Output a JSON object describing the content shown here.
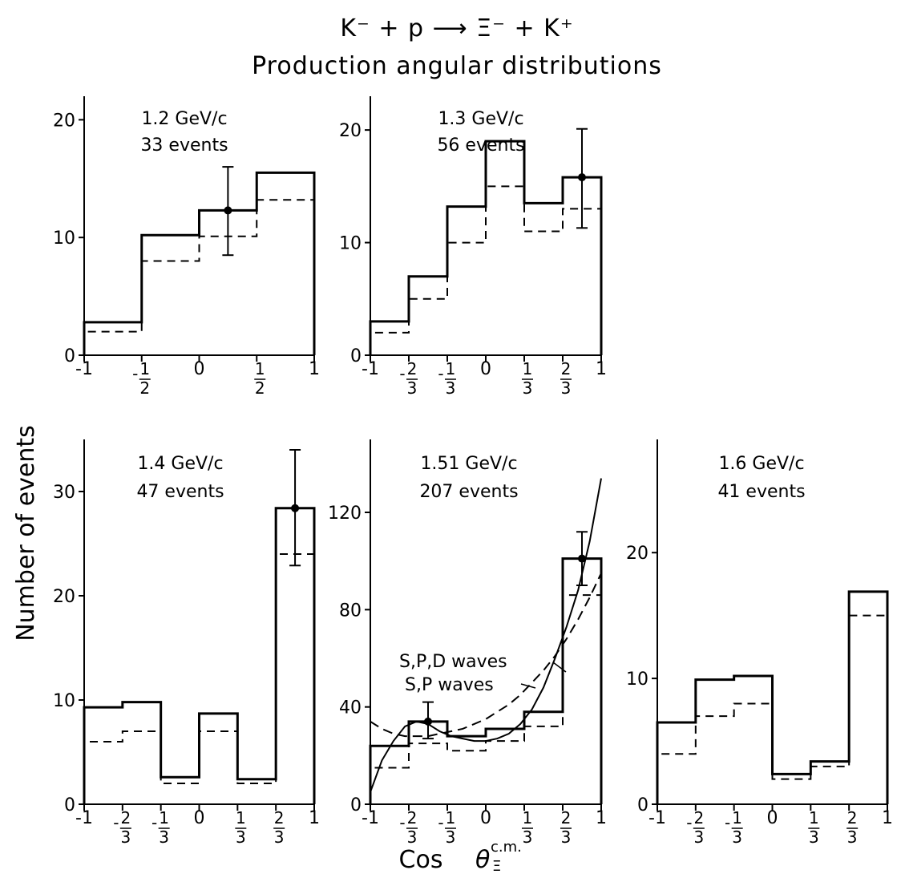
{
  "figure": {
    "title": "K⁻ + p ⟶ Ξ⁻ + K⁺",
    "subtitle": "Production angular distributions",
    "ylabel": "Number of events",
    "xlabel_main": "Cos",
    "xlabel_theta": "θ",
    "xlabel_sup": "c.m.",
    "xlabel_sub": "Ξ"
  },
  "chart_data": [
    {
      "type": "bar",
      "label_line1": "1.2 GeV/c",
      "label_line2": "33 events",
      "bin_edges": [
        -1,
        -0.5,
        0,
        0.5,
        1
      ],
      "series": [
        {
          "name": "",
          "style": "solid",
          "values": [
            2.8,
            10.2,
            12.3,
            15.5
          ]
        },
        {
          "name": "",
          "style": "dashed",
          "values": [
            2.0,
            8.0,
            10.1,
            13.2
          ]
        }
      ],
      "error_point": {
        "x": 0.25,
        "y": 12.3,
        "low": 8.5,
        "high": 16.0
      },
      "ylim": [
        0,
        22
      ],
      "yticks": [
        0,
        10,
        20
      ],
      "xticks": [
        {
          "v": -1,
          "t": "-1"
        },
        {
          "v": -0.5,
          "t": "-",
          "num": "1",
          "den": "2"
        },
        {
          "v": 0,
          "t": "0"
        },
        {
          "v": 0.5,
          "num": "1",
          "den": "2"
        },
        {
          "v": 1,
          "t": "1"
        }
      ]
    },
    {
      "type": "bar",
      "label_line1": "1.3 GeV/c",
      "label_line2": "56 events",
      "bin_edges": [
        -1,
        -0.6667,
        -0.3333,
        0,
        0.3333,
        0.6667,
        1
      ],
      "series": [
        {
          "name": "",
          "style": "solid",
          "values": [
            3.0,
            7.0,
            13.2,
            19.0,
            13.5,
            15.8
          ]
        },
        {
          "name": "",
          "style": "dashed",
          "values": [
            2.0,
            5.0,
            10.0,
            15.0,
            11.0,
            13.0
          ]
        }
      ],
      "error_point": {
        "x": 0.8333,
        "y": 15.8,
        "low": 11.3,
        "high": 20.1
      },
      "ylim": [
        0,
        23
      ],
      "yticks": [
        0,
        10,
        20
      ],
      "xticks": [
        {
          "v": -1,
          "t": "-1"
        },
        {
          "v": -0.6667,
          "t": "-",
          "num": "2",
          "den": "3"
        },
        {
          "v": -0.3333,
          "t": "-",
          "num": "1",
          "den": "3"
        },
        {
          "v": 0,
          "t": "0"
        },
        {
          "v": 0.3333,
          "num": "1",
          "den": "3"
        },
        {
          "v": 0.6667,
          "num": "2",
          "den": "3"
        },
        {
          "v": 1,
          "t": "1"
        }
      ]
    },
    {
      "type": "bar",
      "label_line1": "1.4 GeV/c",
      "label_line2": "47 events",
      "bin_edges": [
        -1,
        -0.6667,
        -0.3333,
        0,
        0.3333,
        0.6667,
        1
      ],
      "series": [
        {
          "name": "",
          "style": "solid",
          "values": [
            9.3,
            9.8,
            2.6,
            8.7,
            2.4,
            28.4
          ]
        },
        {
          "name": "",
          "style": "dashed",
          "values": [
            6.0,
            7.0,
            2.0,
            7.0,
            2.0,
            24.0
          ]
        }
      ],
      "error_point": {
        "x": 0.8333,
        "y": 28.4,
        "low": 22.9,
        "high": 34.0
      },
      "ylim": [
        0,
        35
      ],
      "yticks": [
        0,
        10,
        20,
        30
      ],
      "xticks": [
        {
          "v": -1,
          "t": "-1"
        },
        {
          "v": -0.6667,
          "t": "-",
          "num": "2",
          "den": "3"
        },
        {
          "v": -0.3333,
          "t": "-",
          "num": "1",
          "den": "3"
        },
        {
          "v": 0,
          "t": "0"
        },
        {
          "v": 0.3333,
          "num": "1",
          "den": "3"
        },
        {
          "v": 0.6667,
          "num": "2",
          "den": "3"
        },
        {
          "v": 1,
          "t": "1"
        }
      ]
    },
    {
      "type": "bar",
      "label_line1": "1.51 GeV/c",
      "label_line2": "207 events",
      "bin_edges": [
        -1,
        -0.6667,
        -0.3333,
        0,
        0.3333,
        0.6667,
        1
      ],
      "series": [
        {
          "name": "",
          "style": "solid",
          "values": [
            24,
            34,
            28,
            31,
            38,
            101
          ]
        },
        {
          "name": "",
          "style": "dashed",
          "values": [
            15,
            25,
            22,
            26,
            32,
            86
          ]
        }
      ],
      "curves": [
        {
          "name": "S,P,D waves",
          "style": "solid",
          "x": [
            -1,
            -0.9,
            -0.8,
            -0.7,
            -0.6,
            -0.5,
            -0.4,
            -0.3,
            -0.2,
            -0.1,
            0,
            0.1,
            0.2,
            0.3,
            0.4,
            0.5,
            0.6,
            0.7,
            0.8,
            0.9,
            1
          ],
          "y": [
            5,
            18,
            26,
            32,
            34,
            33,
            30,
            28,
            27,
            26,
            26,
            27,
            29,
            33,
            39,
            48,
            60,
            73,
            88,
            108,
            134
          ]
        },
        {
          "name": "S,P waves",
          "style": "dashed",
          "x": [
            -1,
            -0.9,
            -0.8,
            -0.7,
            -0.6,
            -0.5,
            -0.4,
            -0.3,
            -0.2,
            -0.1,
            0,
            0.1,
            0.2,
            0.3,
            0.4,
            0.5,
            0.6,
            0.7,
            0.8,
            0.9,
            1
          ],
          "y": [
            34,
            31,
            29,
            28,
            28,
            28,
            29,
            30,
            31,
            33,
            35,
            38,
            41,
            45,
            50,
            55,
            61,
            68,
            76,
            85,
            95
          ]
        }
      ],
      "curve_labels": [
        "S,P,D   waves",
        "S,P   waves"
      ],
      "error_point": {
        "x": -0.5,
        "y": 34,
        "low": 27,
        "high": 42
      },
      "error_point2": {
        "x": 0.8333,
        "y": 101,
        "low": 90,
        "high": 112
      },
      "ylim": [
        0,
        150
      ],
      "yticks": [
        0,
        40,
        80,
        120
      ],
      "xticks": [
        {
          "v": -1,
          "t": "-1"
        },
        {
          "v": -0.6667,
          "t": "-",
          "num": "2",
          "den": "3"
        },
        {
          "v": -0.3333,
          "t": "-",
          "num": "1",
          "den": "3"
        },
        {
          "v": 0,
          "t": "0"
        },
        {
          "v": 0.3333,
          "num": "1",
          "den": "3"
        },
        {
          "v": 0.6667,
          "num": "2",
          "den": "3"
        },
        {
          "v": 1,
          "t": "1"
        }
      ]
    },
    {
      "type": "bar",
      "label_line1": "1.6 GeV/c",
      "label_line2": "41 events",
      "bin_edges": [
        -1,
        -0.6667,
        -0.3333,
        0,
        0.3333,
        0.6667,
        1
      ],
      "series": [
        {
          "name": "",
          "style": "solid",
          "values": [
            6.5,
            9.9,
            10.2,
            2.4,
            3.4,
            16.9
          ]
        },
        {
          "name": "",
          "style": "dashed",
          "values": [
            4.0,
            7.0,
            8.0,
            2.0,
            3.0,
            15.0
          ]
        }
      ],
      "ylim": [
        0,
        29
      ],
      "yticks": [
        0,
        10,
        20
      ],
      "xticks": [
        {
          "v": -1,
          "t": "-1"
        },
        {
          "v": -0.6667,
          "t": "-",
          "num": "2",
          "den": "3"
        },
        {
          "v": -0.3333,
          "t": "-",
          "num": "1",
          "den": "3"
        },
        {
          "v": 0,
          "t": "0"
        },
        {
          "v": 0.3333,
          "num": "1",
          "den": "3"
        },
        {
          "v": 0.6667,
          "num": "2",
          "den": "3"
        },
        {
          "v": 1,
          "t": "1"
        }
      ]
    }
  ]
}
